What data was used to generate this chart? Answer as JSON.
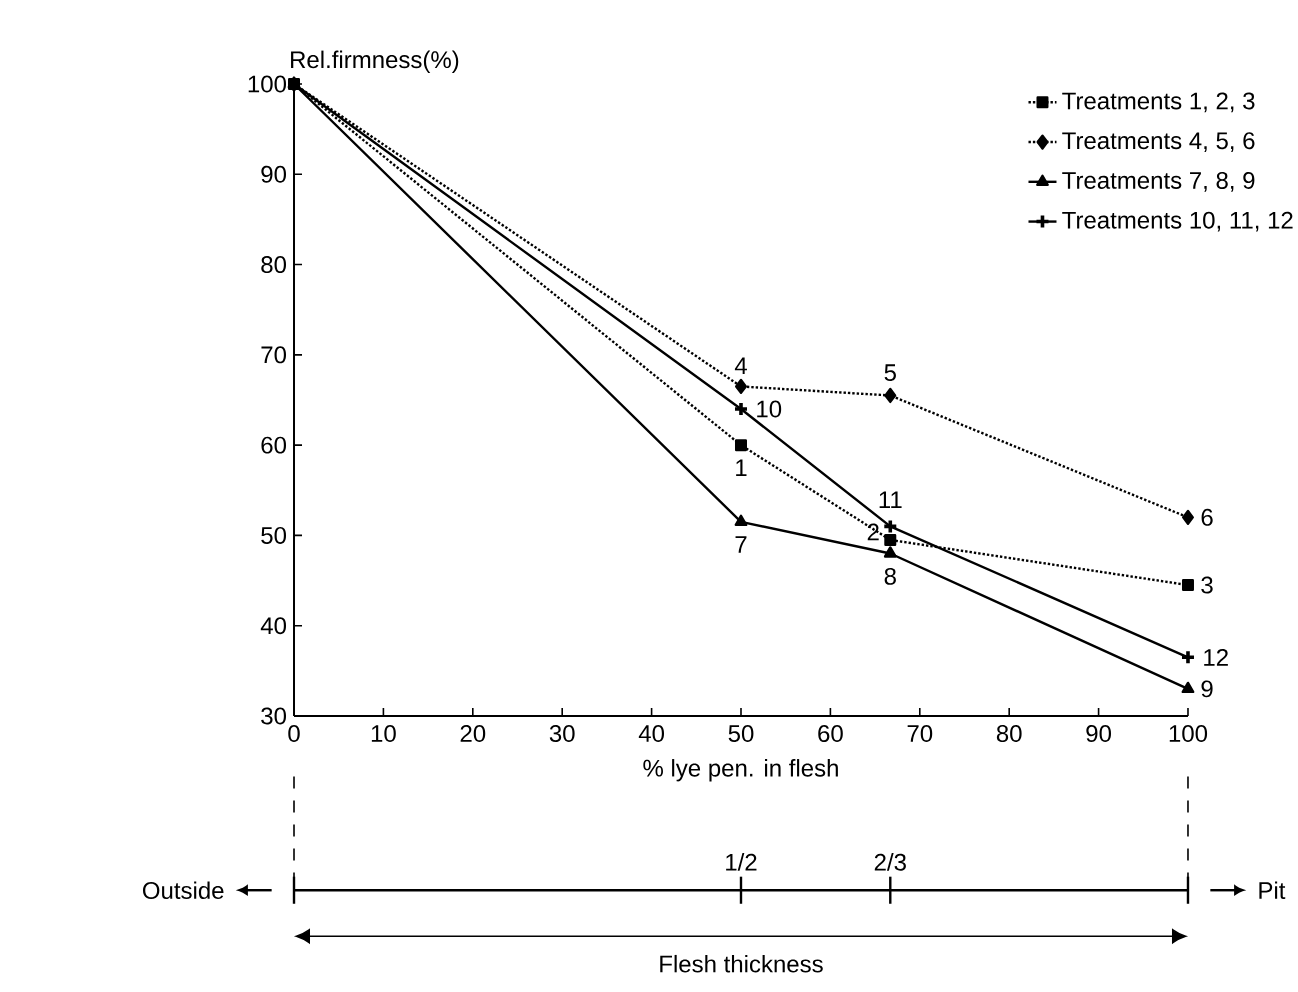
{
  "chart_data": {
    "type": "line",
    "ylabel": "Rel.firmness(%)",
    "xlabel": "% lye pen. in flesh",
    "xlim": [
      0,
      100
    ],
    "xticks": [
      0,
      10,
      20,
      30,
      40,
      50,
      60,
      70,
      80,
      90,
      100
    ],
    "ylim": [
      30,
      100
    ],
    "yticks": [
      30,
      40,
      50,
      60,
      70,
      80,
      90,
      100
    ],
    "x": [
      0,
      50,
      66.7,
      100
    ],
    "series": [
      {
        "name": "Treatments 1, 2, 3",
        "color": "#000000",
        "marker": "square",
        "line_style": "dotted",
        "values": [
          100,
          60,
          49.5,
          44.5
        ]
      },
      {
        "name": "Treatments 4, 5, 6",
        "color": "#000000",
        "marker": "diamond",
        "line_style": "dotted",
        "values": [
          100,
          66.5,
          65.5,
          52
        ]
      },
      {
        "name": "Treatments 7, 8, 9",
        "color": "#000000",
        "marker": "triangle",
        "line_style": "solid",
        "values": [
          100,
          51.5,
          48,
          33
        ]
      },
      {
        "name": "Treatments 10, 11, 12",
        "color": "#000000",
        "marker": "cross",
        "line_style": "solid",
        "values": [
          100,
          64,
          51,
          36.5
        ]
      }
    ],
    "legend": "top right",
    "grid": false,
    "annotations": [
      {
        "text": "1",
        "x": 50,
        "y": 60
      },
      {
        "text": "2",
        "x": 66.7,
        "y": 49.5
      },
      {
        "text": "3",
        "x": 100,
        "y": 44.5
      },
      {
        "text": "4",
        "x": 50,
        "y": 66.5
      },
      {
        "text": "5",
        "x": 66.7,
        "y": 65.5
      },
      {
        "text": "6",
        "x": 100,
        "y": 52
      },
      {
        "text": "7",
        "x": 50,
        "y": 51.5
      },
      {
        "text": "8",
        "x": 66.7,
        "y": 48
      },
      {
        "text": "9",
        "x": 100,
        "y": 33
      },
      {
        "text": "10",
        "x": 50,
        "y": 64
      },
      {
        "text": "11",
        "x": 66.7,
        "y": 51
      },
      {
        "text": "12",
        "x": 100,
        "y": 36.5
      },
      "Outside",
      "Pit",
      "1/2",
      "2/3",
      "Flesh thickness"
    ]
  }
}
